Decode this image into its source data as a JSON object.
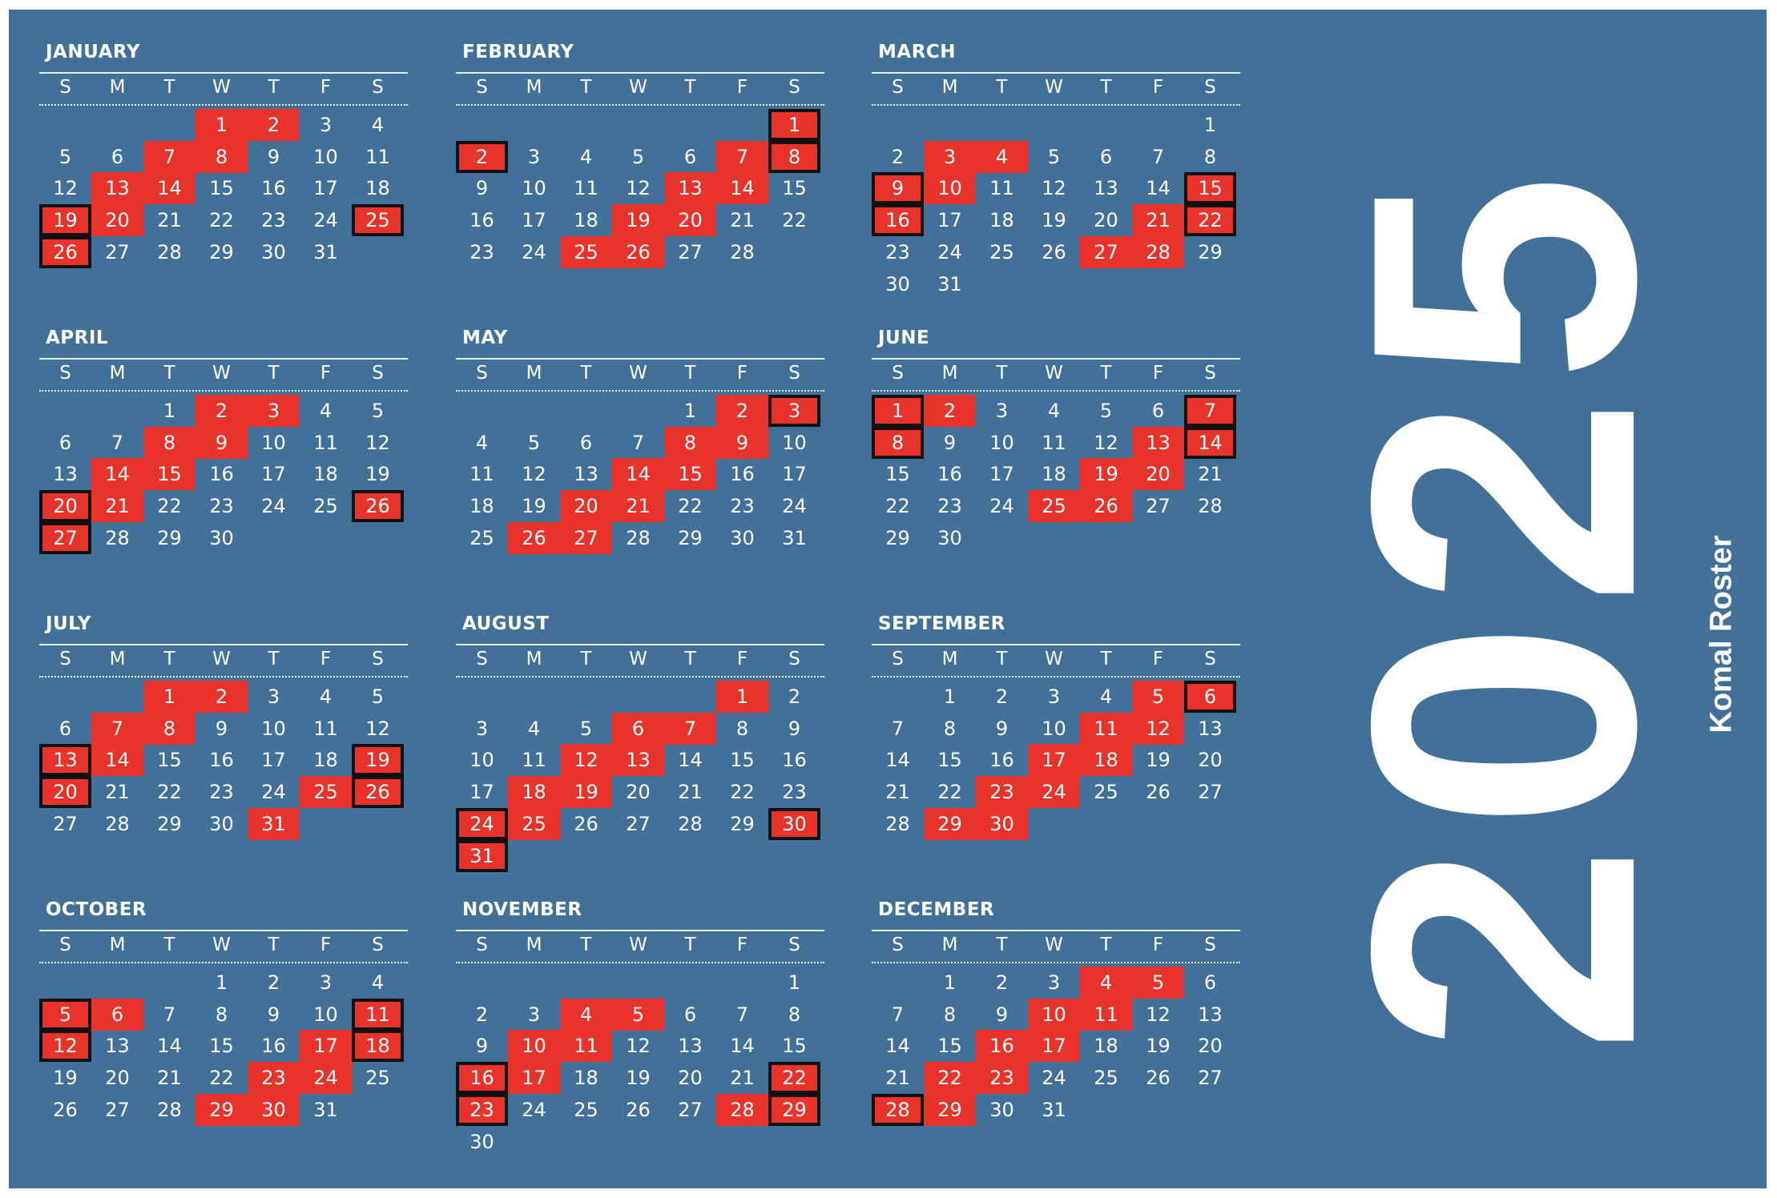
{
  "year": "2025",
  "footer_label": "Komal Roster",
  "weekdays": [
    "S",
    "M",
    "T",
    "W",
    "T",
    "F",
    "S"
  ],
  "colors": {
    "background": "#417098",
    "highlight": "#e8332a",
    "box_border": "#111111",
    "text": "#ffffff"
  },
  "months": [
    {
      "name": "JANUARY",
      "first_weekday": 3,
      "days": 31,
      "red": [
        1,
        2,
        7,
        8,
        13,
        14,
        19,
        20,
        25,
        26
      ],
      "boxed": [
        19,
        25,
        26
      ]
    },
    {
      "name": "FEBRUARY",
      "first_weekday": 6,
      "days": 28,
      "red": [
        1,
        2,
        7,
        8,
        13,
        14,
        19,
        20,
        25,
        26
      ],
      "boxed": [
        1,
        2,
        8
      ]
    },
    {
      "name": "MARCH",
      "first_weekday": 6,
      "days": 31,
      "red": [
        3,
        4,
        9,
        10,
        15,
        16,
        21,
        22,
        27,
        28
      ],
      "boxed": [
        9,
        15,
        16,
        22
      ]
    },
    {
      "name": "APRIL",
      "first_weekday": 2,
      "days": 30,
      "red": [
        2,
        3,
        8,
        9,
        14,
        15,
        20,
        21,
        26,
        27
      ],
      "boxed": [
        20,
        26,
        27
      ]
    },
    {
      "name": "MAY",
      "first_weekday": 4,
      "days": 31,
      "red": [
        2,
        3,
        8,
        9,
        14,
        15,
        20,
        21,
        26,
        27
      ],
      "boxed": [
        3
      ]
    },
    {
      "name": "JUNE",
      "first_weekday": 0,
      "days": 30,
      "red": [
        1,
        2,
        7,
        8,
        13,
        14,
        19,
        20,
        25,
        26
      ],
      "boxed": [
        1,
        7,
        8,
        14
      ]
    },
    {
      "name": "JULY",
      "first_weekday": 2,
      "days": 31,
      "red": [
        1,
        2,
        7,
        8,
        13,
        14,
        19,
        20,
        25,
        26,
        31
      ],
      "boxed": [
        13,
        19,
        20,
        26
      ]
    },
    {
      "name": "AUGUST",
      "first_weekday": 5,
      "days": 31,
      "red": [
        1,
        6,
        7,
        12,
        13,
        18,
        19,
        24,
        25,
        30,
        31
      ],
      "boxed": [
        24,
        30,
        31
      ]
    },
    {
      "name": "SEPTEMBER",
      "first_weekday": 1,
      "days": 30,
      "red": [
        5,
        6,
        11,
        12,
        17,
        18,
        23,
        24,
        29,
        30
      ],
      "boxed": [
        6
      ]
    },
    {
      "name": "OCTOBER",
      "first_weekday": 3,
      "days": 31,
      "red": [
        5,
        6,
        11,
        12,
        17,
        18,
        23,
        24,
        29,
        30
      ],
      "boxed": [
        5,
        11,
        12,
        18
      ]
    },
    {
      "name": "NOVEMBER",
      "first_weekday": 6,
      "days": 30,
      "red": [
        4,
        5,
        10,
        11,
        16,
        17,
        22,
        23,
        28,
        29
      ],
      "boxed": [
        16,
        22,
        23,
        29
      ]
    },
    {
      "name": "DECEMBER",
      "first_weekday": 1,
      "days": 31,
      "red": [
        4,
        5,
        10,
        11,
        16,
        17,
        22,
        23,
        28,
        29
      ],
      "boxed": [
        28
      ]
    }
  ]
}
